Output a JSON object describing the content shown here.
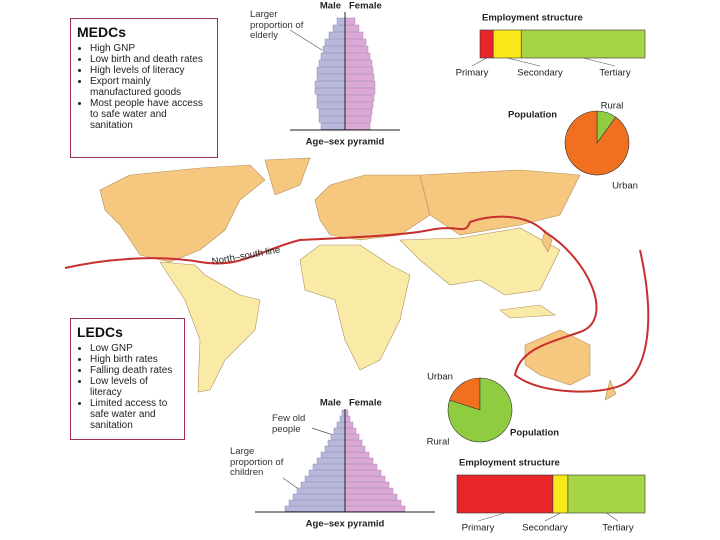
{
  "map": {
    "line_label": "North–south line"
  },
  "medc_box": {
    "title": "MEDCs",
    "bullets": [
      "High GNP",
      "Low birth and death rates",
      "High levels of literacy",
      "Export mainly manufactured goods",
      "Most people have access to safe water and sanitation"
    ]
  },
  "ledc_box": {
    "title": "LEDCs",
    "bullets": [
      "Low GNP",
      "High birth rates",
      "Falling death rates",
      "Low levels of literacy",
      "Limited access to safe water and sanitation"
    ]
  },
  "medc_pyramid": {
    "male_label": "Male",
    "female_label": "Female",
    "annotation": "Larger proportion of elderly",
    "caption": "Age–sex pyramid",
    "male": [
      8,
      12,
      16,
      20,
      22,
      24,
      26,
      28,
      28,
      30,
      30,
      28,
      28,
      26,
      26,
      24
    ],
    "female": [
      10,
      14,
      18,
      21,
      23,
      25,
      27,
      28,
      29,
      30,
      30,
      29,
      28,
      27,
      26,
      25
    ]
  },
  "ledc_pyramid": {
    "male_label": "Male",
    "female_label": "Female",
    "annotation_top": "Few old people",
    "annotation_bottom": "Large proportion of children",
    "caption": "Age–sex pyramid",
    "male": [
      3,
      5,
      8,
      11,
      14,
      17,
      20,
      24,
      28,
      32,
      36,
      40,
      44,
      48,
      52,
      56,
      60
    ],
    "female": [
      3,
      5,
      8,
      11,
      14,
      17,
      20,
      24,
      28,
      32,
      36,
      40,
      44,
      48,
      52,
      56,
      60
    ]
  },
  "medc_employment": {
    "title": "Employment structure",
    "categories": [
      "Primary",
      "Secondary",
      "Tertiary"
    ],
    "values": [
      8,
      17,
      75
    ],
    "colors": [
      "#e8262a",
      "#f8e81a",
      "#a8d448"
    ]
  },
  "ledc_employment": {
    "title": "Employment structure",
    "categories": [
      "Primary",
      "Secondary",
      "Tertiary"
    ],
    "values": [
      51,
      8,
      41
    ],
    "colors": [
      "#e8262a",
      "#f8e81a",
      "#a8d448"
    ]
  },
  "medc_population": {
    "title": "Population",
    "categories": [
      "Rural",
      "Urban"
    ],
    "values": [
      10,
      90
    ],
    "colors": [
      "#90cc40",
      "#f07020"
    ]
  },
  "ledc_population": {
    "title": "Population",
    "categories": [
      "Urban",
      "Rural"
    ],
    "values": [
      20,
      80
    ],
    "colors": [
      "#f07020",
      "#90cc40"
    ]
  }
}
